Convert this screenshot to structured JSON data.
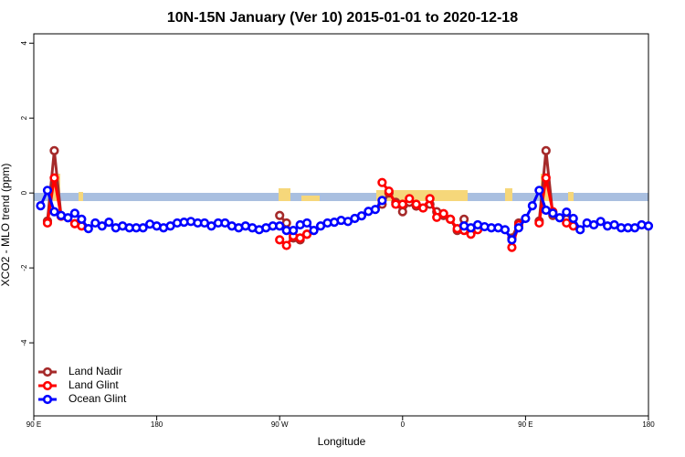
{
  "chart_data": {
    "type": "line",
    "title": "10N-15N January (Ver 10)   2015-01-01 to 2020-12-18",
    "x_label": "Longitude",
    "y_label": "XCO2 - MLO trend (ppm)",
    "xlim": [
      90,
      540
    ],
    "ylim": [
      -5.95,
      4.25
    ],
    "xticks": [
      {
        "value": 90,
        "label": "90 E"
      },
      180,
      {
        "value": 270,
        "label": "90 W"
      },
      {
        "value": 360,
        "label": "0"
      },
      {
        "value": 450,
        "label": "90 E"
      },
      {
        "value": 540,
        "label": "180"
      }
    ],
    "yticks": [
      -4,
      -2,
      0,
      2,
      4
    ],
    "grid": false,
    "legend": "bottom-left",
    "x": [
      95,
      100,
      105,
      110,
      115,
      120,
      125,
      130,
      135,
      140,
      145,
      150,
      155,
      160,
      165,
      170,
      175,
      180,
      185,
      190,
      195,
      200,
      205,
      210,
      215,
      220,
      225,
      230,
      235,
      240,
      245,
      250,
      255,
      260,
      265,
      270,
      275,
      280,
      285,
      290,
      295,
      300,
      305,
      310,
      315,
      320,
      325,
      330,
      335,
      340,
      345,
      350,
      355,
      360,
      365,
      370,
      375,
      380,
      385,
      390,
      395,
      400,
      405,
      410,
      415,
      420,
      425,
      430,
      435,
      440,
      445,
      450,
      455,
      460,
      465,
      470,
      475,
      480,
      485,
      490,
      495,
      500,
      505,
      510,
      515,
      520,
      525,
      530,
      535,
      540
    ],
    "series": [
      {
        "name": "Land Nadir",
        "color": "#a52a2a",
        "values": [
          null,
          -0.75,
          1.13,
          -0.62,
          null,
          null,
          null,
          null,
          null,
          null,
          null,
          null,
          null,
          null,
          null,
          null,
          null,
          null,
          null,
          null,
          null,
          null,
          null,
          null,
          null,
          null,
          null,
          null,
          null,
          null,
          null,
          null,
          null,
          null,
          null,
          -0.6,
          -0.8,
          -1.2,
          -1.25,
          -1.1,
          null,
          null,
          null,
          null,
          null,
          null,
          null,
          null,
          null,
          null,
          -0.3,
          0.0,
          -0.25,
          -0.5,
          -0.25,
          -0.35,
          -0.4,
          -0.3,
          -0.5,
          -0.6,
          -0.7,
          -1.0,
          -0.7,
          null,
          null,
          null,
          null,
          null,
          null,
          -1.2,
          -0.8,
          null,
          null,
          -0.75,
          1.13,
          -0.6,
          null,
          -0.7,
          -0.85,
          null,
          null,
          null,
          null,
          null,
          null,
          null,
          null,
          null,
          null,
          null
        ]
      },
      {
        "name": "Land Glint",
        "color": "#ff0000",
        "values": [
          null,
          -0.8,
          0.4,
          -0.62,
          null,
          -0.82,
          -0.88,
          null,
          null,
          null,
          null,
          null,
          null,
          null,
          null,
          null,
          null,
          null,
          null,
          null,
          null,
          null,
          null,
          null,
          null,
          null,
          null,
          null,
          null,
          null,
          null,
          null,
          null,
          null,
          null,
          -1.25,
          -1.4,
          -1.15,
          -1.2,
          -1.1,
          null,
          null,
          null,
          null,
          null,
          null,
          null,
          null,
          null,
          null,
          0.28,
          0.05,
          -0.3,
          -0.3,
          -0.15,
          -0.3,
          -0.4,
          -0.15,
          -0.65,
          -0.55,
          -0.7,
          -0.95,
          -1.0,
          -1.1,
          -0.98,
          null,
          null,
          null,
          null,
          -1.45,
          -0.85,
          null,
          null,
          -0.8,
          0.4,
          -0.5,
          null,
          -0.8,
          -0.88,
          null,
          null,
          null,
          null,
          null,
          null,
          null,
          null,
          null,
          null,
          null
        ]
      },
      {
        "name": "Ocean Glint",
        "color": "#0000ff",
        "values": [
          -0.34,
          0.07,
          -0.5,
          -0.6,
          -0.66,
          -0.54,
          -0.7,
          -0.95,
          -0.8,
          -0.88,
          -0.78,
          -0.93,
          -0.88,
          -0.93,
          -0.93,
          -0.93,
          -0.83,
          -0.88,
          -0.93,
          -0.88,
          -0.8,
          -0.78,
          -0.76,
          -0.8,
          -0.8,
          -0.88,
          -0.8,
          -0.8,
          -0.88,
          -0.93,
          -0.88,
          -0.93,
          -0.98,
          -0.93,
          -0.88,
          -0.88,
          -1.0,
          -1.0,
          -0.85,
          -0.8,
          -1.0,
          -0.88,
          -0.8,
          -0.78,
          -0.73,
          -0.76,
          -0.68,
          -0.61,
          -0.49,
          -0.44,
          -0.2,
          null,
          null,
          null,
          null,
          null,
          null,
          null,
          null,
          null,
          null,
          null,
          -0.88,
          -0.93,
          -0.85,
          -0.9,
          -0.93,
          -0.93,
          -0.98,
          -1.25,
          -0.93,
          -0.68,
          -0.34,
          0.07,
          -0.46,
          -0.54,
          -0.66,
          -0.51,
          -0.68,
          -0.98,
          -0.8,
          -0.85,
          -0.76,
          -0.88,
          -0.85,
          -0.93,
          -0.93,
          -0.93,
          -0.85,
          -0.88
        ]
      }
    ]
  }
}
